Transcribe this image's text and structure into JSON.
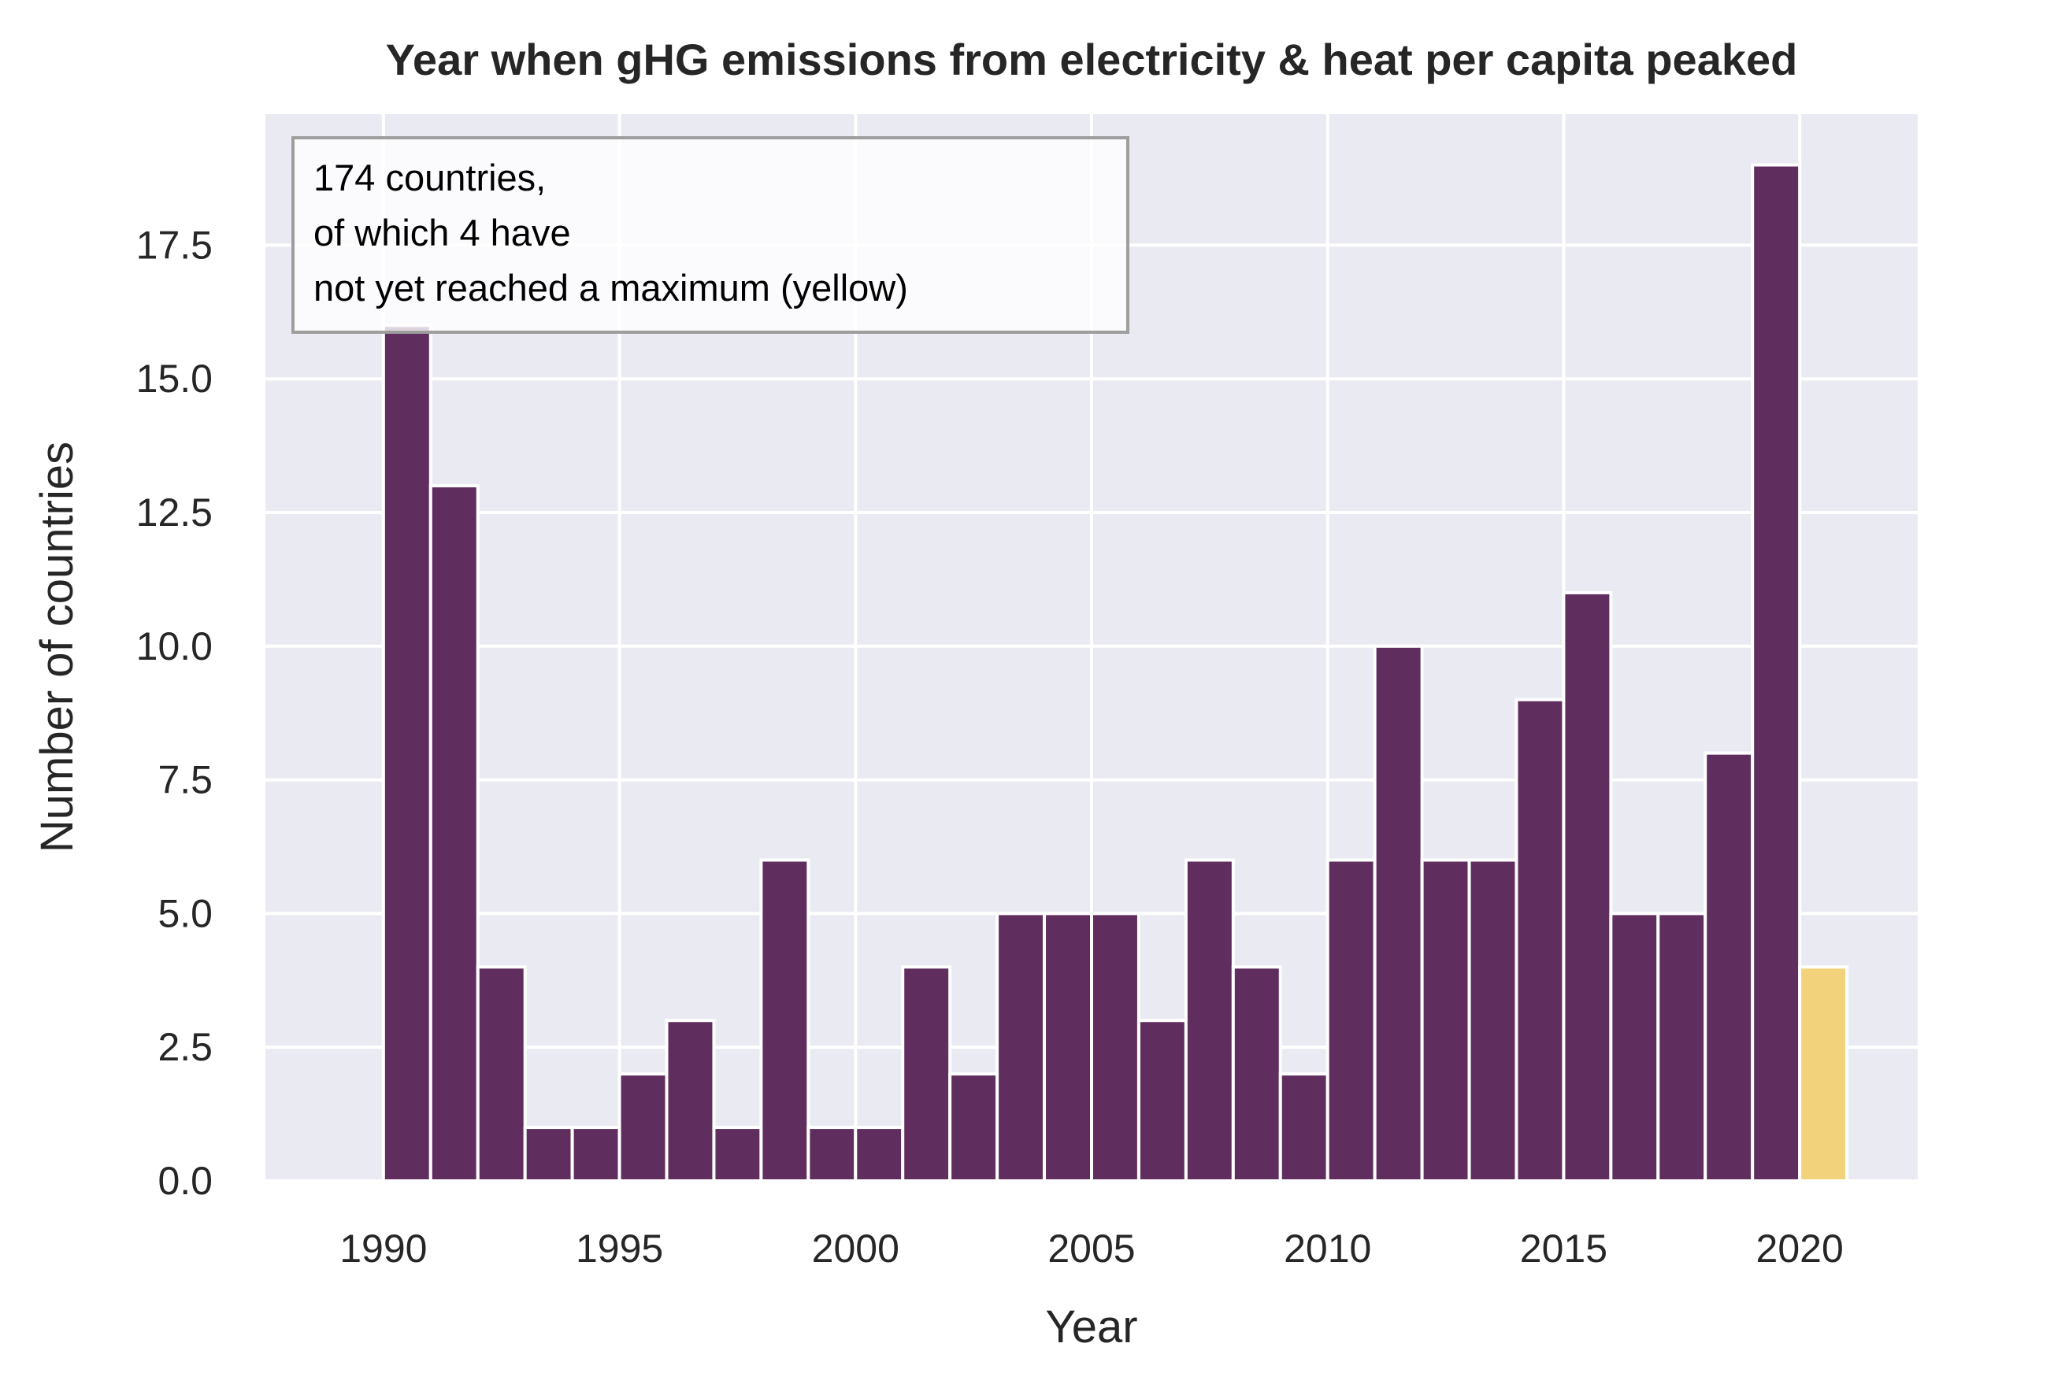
{
  "chart_data": {
    "type": "bar",
    "title": "Year when gHG emissions from electricity & heat per capita peaked",
    "xlabel": "Year",
    "ylabel": "Number of countries",
    "x": [
      1990,
      1991,
      1992,
      1993,
      1994,
      1995,
      1996,
      1997,
      1998,
      1999,
      2000,
      2001,
      2002,
      2003,
      2004,
      2005,
      2006,
      2007,
      2008,
      2009,
      2010,
      2011,
      2012,
      2013,
      2014,
      2015,
      2016,
      2017,
      2018,
      2019
    ],
    "values": [
      16,
      13,
      4,
      1,
      1,
      2,
      3,
      1,
      6,
      1,
      1,
      4,
      2,
      5,
      5,
      5,
      3,
      6,
      4,
      2,
      6,
      10,
      6,
      6,
      9,
      11,
      5,
      5,
      8,
      19
    ],
    "highlight": {
      "x": 2020,
      "value": 4,
      "color": "#f2d27a"
    },
    "bar_color": "#5f2d5e",
    "xlim": [
      1987.5,
      2022.5
    ],
    "ylim": [
      0,
      19.95
    ],
    "xticks": [
      1990,
      1995,
      2000,
      2005,
      2010,
      2015,
      2020
    ],
    "yticks": [
      0,
      2.5,
      5,
      7.5,
      10,
      12.5,
      15,
      17.5
    ],
    "ytick_labels": [
      "0.0",
      "2.5",
      "5.0",
      "7.5",
      "10.0",
      "12.5",
      "15.0",
      "17.5"
    ],
    "grid": true,
    "background": "#eaeaf2",
    "annotation": {
      "lines": [
        "174 countries,",
        "of which 4 have",
        "not yet reached a maximum (yellow)"
      ],
      "placement": "top-left"
    }
  }
}
